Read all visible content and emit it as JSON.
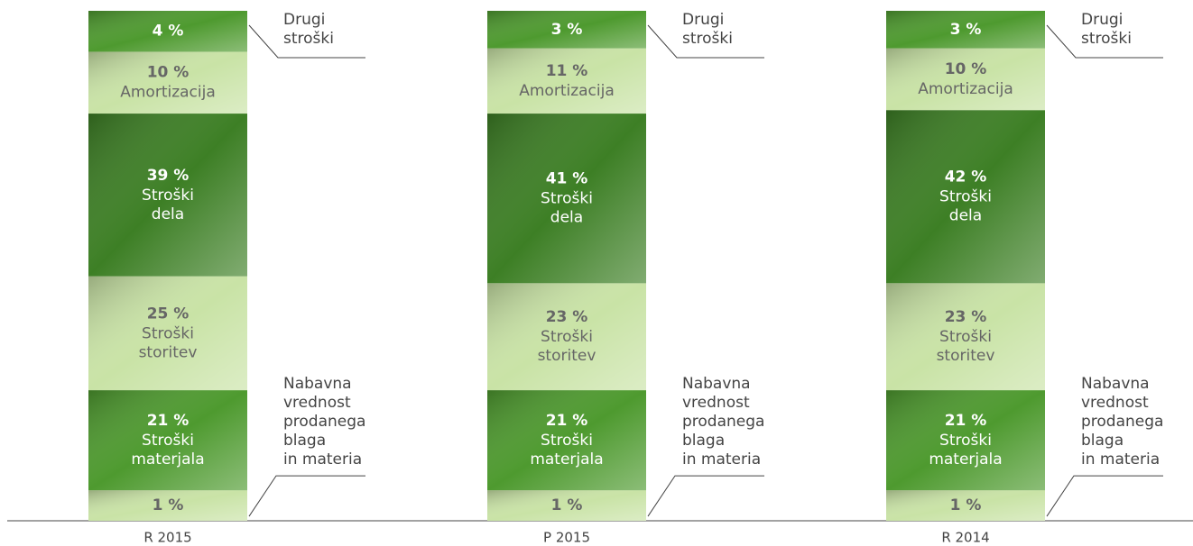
{
  "chart_data": {
    "type": "stacked-bar",
    "categories": [
      "R 2015",
      "P 2015",
      "R 2014"
    ],
    "series": [
      {
        "name": "Nabavna\nvrednost\nprodanega\nblaga\nin materia",
        "color": "#c9e3a6",
        "values": [
          1,
          1,
          1
        ],
        "value_labels": [
          "1 %",
          "1 %",
          "1 %"
        ]
      },
      {
        "name": "Stroški\nmaterjala",
        "color": "#4e9a2f",
        "values": [
          21,
          21,
          21
        ],
        "value_labels": [
          "21 %",
          "21 %",
          "21 %"
        ]
      },
      {
        "name": "Stroški\nstoritev",
        "color": "#c9e3a6",
        "values": [
          25,
          23,
          23
        ],
        "value_labels": [
          "25 %",
          "23 %",
          "23 %"
        ]
      },
      {
        "name": "Stroški\ndela",
        "color": "#3d7f25",
        "values": [
          39,
          41,
          42
        ],
        "value_labels": [
          "39 %",
          "41 %",
          "42 %"
        ]
      },
      {
        "name": "Amortizacija",
        "color": "#c9e3a6",
        "values": [
          10,
          11,
          10
        ],
        "value_labels": [
          "10 %",
          "11 %",
          "10 %"
        ]
      },
      {
        "name": "Drugi\nstroški",
        "color": "#4e9a2f",
        "values": [
          4,
          3,
          3
        ],
        "value_labels": [
          "4 %",
          "3 %",
          "3 %"
        ]
      }
    ]
  }
}
